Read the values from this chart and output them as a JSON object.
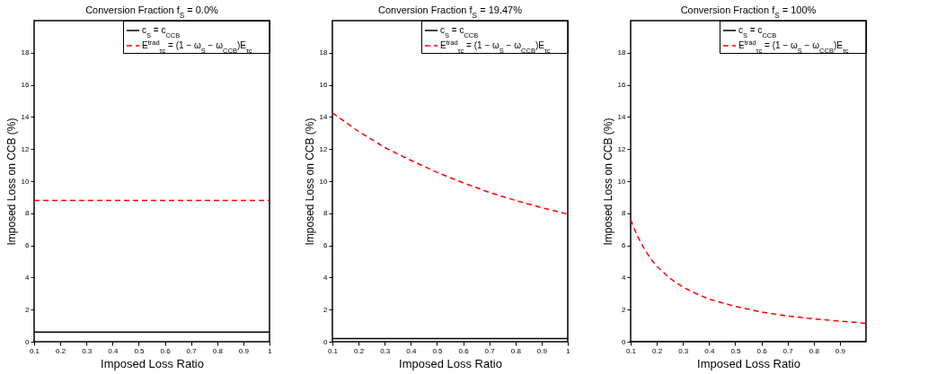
{
  "chart_data": [
    {
      "type": "line",
      "title": "Conversion Fraction f$_{S}$ = 0.0%",
      "xlabel": "Imposed Loss Ratio",
      "ylabel": "Imposed Loss on CCB (%)",
      "x": [
        0.1,
        0.2,
        0.3,
        0.4,
        0.5,
        0.6,
        0.7,
        0.8,
        0.9,
        1.0
      ],
      "xlim": [
        0.1,
        1
      ],
      "ylim": [
        0,
        20
      ],
      "xticks": [
        0.1,
        0.2,
        0.3,
        0.4,
        0.5,
        0.6,
        0.7,
        0.8,
        0.9,
        1
      ],
      "yticks": [
        0,
        2,
        4,
        6,
        8,
        10,
        12,
        14,
        16,
        18
      ],
      "grid": false,
      "legend": "top right",
      "series": [
        {
          "name": "c$_{S}$ = c$_{CCB}$",
          "color": "#000000",
          "line_style": "solid",
          "values": [
            0.6,
            0.6,
            0.6,
            0.6,
            0.6,
            0.6,
            0.6,
            0.6,
            0.6,
            0.6
          ]
        },
        {
          "name": "E$^{trad}$$_{τc}$ = (1 − ω$_{S}$ − ω$_{CCB}$)E$_{τc}$",
          "color": "#ff0000",
          "line_style": "dashed",
          "values": [
            8.8,
            8.8,
            8.8,
            8.8,
            8.8,
            8.8,
            8.8,
            8.8,
            8.8,
            8.8
          ]
        }
      ]
    },
    {
      "type": "line",
      "title": "Conversion Fraction f$_{S}$ = 19.47%",
      "xlabel": "Imposed Loss Ratio",
      "ylabel": "Imposed Loss on CCB (%)",
      "x": [
        0.1,
        0.2,
        0.3,
        0.4,
        0.5,
        0.6,
        0.7,
        0.8,
        0.9,
        1.0
      ],
      "xlim": [
        0.1,
        1
      ],
      "ylim": [
        0,
        20
      ],
      "xticks": [
        0.1,
        0.2,
        0.3,
        0.4,
        0.5,
        0.6,
        0.7,
        0.8,
        0.9,
        1
      ],
      "yticks": [
        0,
        2,
        4,
        6,
        8,
        10,
        12,
        14,
        16,
        18
      ],
      "grid": false,
      "legend": "top right",
      "series": [
        {
          "name": "c$_{S}$ = c$_{CCB}$",
          "color": "#000000",
          "line_style": "solid",
          "values": [
            0.2,
            0.2,
            0.2,
            0.2,
            0.2,
            0.2,
            0.2,
            0.2,
            0.2,
            0.2
          ]
        },
        {
          "name": "E$^{trad}$$_{τc}$ = (1 − ω$_{S}$ − ω$_{CCB}$)E$_{τc}$",
          "color": "#ff0000",
          "line_style": "dashed",
          "values": [
            14.25,
            13.1,
            12.1,
            11.3,
            10.55,
            9.9,
            9.3,
            8.8,
            8.35,
            7.95
          ]
        }
      ]
    },
    {
      "type": "line",
      "title": "Conversion Fraction f$_{S}$ = 100%",
      "xlabel": "Imposed Loss Ratio",
      "ylabel": "Imposed Loss on CCB (%)",
      "x": [
        0.1,
        0.125,
        0.15,
        0.175,
        0.2,
        0.25,
        0.3,
        0.35,
        0.4,
        0.5,
        0.6,
        0.7,
        0.8,
        0.9,
        1.0
      ],
      "xlim": [
        0.1,
        1
      ],
      "ylim": [
        0,
        20
      ],
      "xticks": [
        0.1,
        0.2,
        0.3,
        0.4,
        0.5,
        0.6,
        0.7,
        0.8,
        0.9
      ],
      "yticks": [
        0,
        2,
        4,
        6,
        8,
        10,
        12,
        14,
        16,
        18
      ],
      "grid": false,
      "legend": "top right",
      "series": [
        {
          "name": "c$_{S}$ = c$_{CCB}$",
          "color": "#000000",
          "line_style": "solid",
          "values": [
            0,
            0,
            0,
            0,
            0,
            0,
            0,
            0,
            0,
            0,
            0,
            0,
            0,
            0,
            0
          ]
        },
        {
          "name": "E$^{trad}$$_{τc}$ = (1 − ω$_{S}$ − ω$_{CCB}$)E$_{τc}$",
          "color": "#ff0000",
          "line_style": "dashed",
          "values": [
            7.6,
            6.6,
            5.85,
            5.2,
            4.7,
            3.95,
            3.4,
            3.0,
            2.65,
            2.2,
            1.85,
            1.6,
            1.42,
            1.28,
            1.15
          ]
        }
      ]
    }
  ]
}
